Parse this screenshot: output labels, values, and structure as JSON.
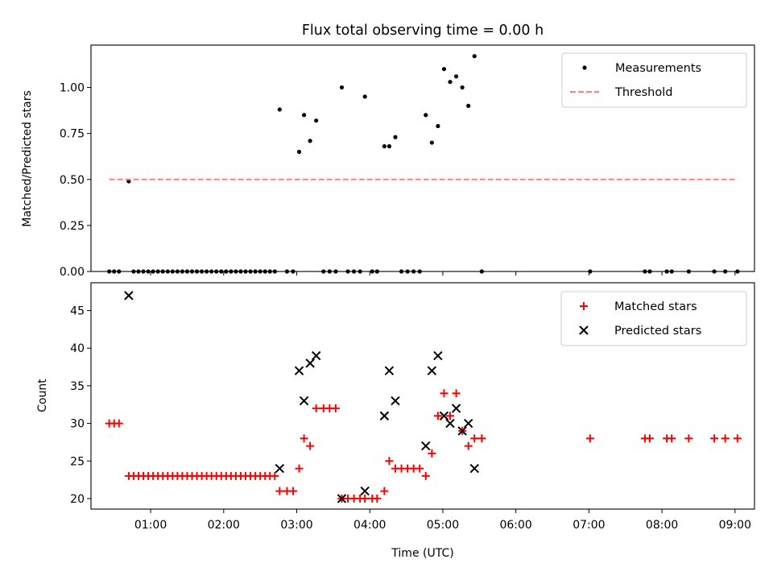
{
  "chart_data": [
    {
      "type": "scatter",
      "title": "Flux total observing time = 0.00 h",
      "ylabel": "Matched/Predicted stars",
      "xlabel": "",
      "xlim": [
        "00:11",
        "09:16"
      ],
      "ylim": [
        0,
        1.23
      ],
      "x_ticks": [
        "01:00",
        "02:00",
        "03:00",
        "04:00",
        "05:00",
        "06:00",
        "07:00",
        "08:00",
        "09:00"
      ],
      "y_ticks": [
        "0.00",
        "0.25",
        "0.50",
        "0.75",
        "1.00"
      ],
      "legend": {
        "placement": "top-right",
        "entries": [
          "Measurements",
          "Threshold"
        ]
      },
      "series": [
        {
          "name": "Measurements",
          "color": "#000000",
          "marker": "dot",
          "points": [
            [
              "00:26",
              0
            ],
            [
              "00:30",
              0
            ],
            [
              "00:34",
              0
            ],
            [
              "00:42",
              0.49
            ],
            [
              "00:46",
              0
            ],
            [
              "00:50",
              0
            ],
            [
              "00:54",
              0
            ],
            [
              "00:58",
              0
            ],
            [
              "01:02",
              0
            ],
            [
              "01:06",
              0
            ],
            [
              "01:10",
              0
            ],
            [
              "01:14",
              0
            ],
            [
              "01:18",
              0
            ],
            [
              "01:22",
              0
            ],
            [
              "01:26",
              0
            ],
            [
              "01:30",
              0
            ],
            [
              "01:34",
              0
            ],
            [
              "01:38",
              0
            ],
            [
              "01:42",
              0
            ],
            [
              "01:46",
              0
            ],
            [
              "01:50",
              0
            ],
            [
              "01:54",
              0
            ],
            [
              "01:58",
              0
            ],
            [
              "02:02",
              0
            ],
            [
              "02:06",
              0
            ],
            [
              "02:10",
              0
            ],
            [
              "02:14",
              0
            ],
            [
              "02:18",
              0
            ],
            [
              "02:22",
              0
            ],
            [
              "02:26",
              0
            ],
            [
              "02:30",
              0
            ],
            [
              "02:34",
              0
            ],
            [
              "02:38",
              0
            ],
            [
              "02:42",
              0
            ],
            [
              "02:46",
              0.88
            ],
            [
              "02:52",
              0
            ],
            [
              "02:57",
              0
            ],
            [
              "03:02",
              0.65
            ],
            [
              "03:06",
              0.85
            ],
            [
              "03:11",
              0.71
            ],
            [
              "03:16",
              0.82
            ],
            [
              "03:22",
              0
            ],
            [
              "03:27",
              0
            ],
            [
              "03:32",
              0
            ],
            [
              "03:37",
              1.0
            ],
            [
              "03:42",
              0
            ],
            [
              "03:47",
              0
            ],
            [
              "03:52",
              0
            ],
            [
              "03:56",
              0.95
            ],
            [
              "04:02",
              0
            ],
            [
              "04:06",
              0
            ],
            [
              "04:12",
              0.68
            ],
            [
              "04:16",
              0.68
            ],
            [
              "04:21",
              0.73
            ],
            [
              "04:26",
              0
            ],
            [
              "04:31",
              0
            ],
            [
              "04:36",
              0
            ],
            [
              "04:41",
              0
            ],
            [
              "04:46",
              0.85
            ],
            [
              "04:51",
              0.7
            ],
            [
              "04:56",
              0.79
            ],
            [
              "05:01",
              1.1
            ],
            [
              "05:06",
              1.03
            ],
            [
              "05:11",
              1.06
            ],
            [
              "05:16",
              1.0
            ],
            [
              "05:21",
              0.9
            ],
            [
              "05:26",
              1.17
            ],
            [
              "05:32",
              0
            ],
            [
              "07:01",
              0
            ],
            [
              "07:46",
              0
            ],
            [
              "07:50",
              0
            ],
            [
              "08:04",
              0
            ],
            [
              "08:08",
              0
            ],
            [
              "08:22",
              0
            ],
            [
              "08:43",
              0
            ],
            [
              "08:52",
              0
            ],
            [
              "09:02",
              0
            ]
          ]
        },
        {
          "name": "Threshold",
          "color": "#ff7f7f",
          "line": "dashed",
          "points": [
            [
              "00:26",
              0.5
            ],
            [
              "09:02",
              0.5
            ]
          ]
        }
      ]
    },
    {
      "type": "scatter",
      "title": "",
      "ylabel": "Count",
      "xlabel": "Time (UTC)",
      "xlim": [
        "00:11",
        "09:16"
      ],
      "ylim": [
        18.6,
        48.7
      ],
      "x_ticks": [
        "01:00",
        "02:00",
        "03:00",
        "04:00",
        "05:00",
        "06:00",
        "07:00",
        "08:00",
        "09:00"
      ],
      "y_ticks": [
        "20",
        "25",
        "30",
        "35",
        "40",
        "45"
      ],
      "legend": {
        "placement": "top-right",
        "entries": [
          "Matched stars",
          "Predicted stars"
        ]
      },
      "series": [
        {
          "name": "Matched stars",
          "color": "#ff0000",
          "marker": "plus",
          "points": [
            [
              "00:26",
              30
            ],
            [
              "00:30",
              30
            ],
            [
              "00:34",
              30
            ],
            [
              "00:42",
              23
            ],
            [
              "00:46",
              23
            ],
            [
              "00:50",
              23
            ],
            [
              "00:54",
              23
            ],
            [
              "00:58",
              23
            ],
            [
              "01:02",
              23
            ],
            [
              "01:06",
              23
            ],
            [
              "01:10",
              23
            ],
            [
              "01:14",
              23
            ],
            [
              "01:18",
              23
            ],
            [
              "01:22",
              23
            ],
            [
              "01:26",
              23
            ],
            [
              "01:30",
              23
            ],
            [
              "01:34",
              23
            ],
            [
              "01:38",
              23
            ],
            [
              "01:42",
              23
            ],
            [
              "01:46",
              23
            ],
            [
              "01:50",
              23
            ],
            [
              "01:54",
              23
            ],
            [
              "01:58",
              23
            ],
            [
              "02:02",
              23
            ],
            [
              "02:06",
              23
            ],
            [
              "02:10",
              23
            ],
            [
              "02:14",
              23
            ],
            [
              "02:18",
              23
            ],
            [
              "02:22",
              23
            ],
            [
              "02:26",
              23
            ],
            [
              "02:30",
              23
            ],
            [
              "02:34",
              23
            ],
            [
              "02:38",
              23
            ],
            [
              "02:42",
              23
            ],
            [
              "02:46",
              21
            ],
            [
              "02:52",
              21
            ],
            [
              "02:57",
              21
            ],
            [
              "03:02",
              24
            ],
            [
              "03:06",
              28
            ],
            [
              "03:11",
              27
            ],
            [
              "03:16",
              32
            ],
            [
              "03:22",
              32
            ],
            [
              "03:27",
              32
            ],
            [
              "03:32",
              32
            ],
            [
              "03:37",
              20
            ],
            [
              "03:42",
              20
            ],
            [
              "03:47",
              20
            ],
            [
              "03:52",
              20
            ],
            [
              "03:56",
              20
            ],
            [
              "04:02",
              20
            ],
            [
              "04:06",
              20
            ],
            [
              "04:12",
              21
            ],
            [
              "04:16",
              25
            ],
            [
              "04:21",
              24
            ],
            [
              "04:26",
              24
            ],
            [
              "04:31",
              24
            ],
            [
              "04:36",
              24
            ],
            [
              "04:41",
              24
            ],
            [
              "04:46",
              23
            ],
            [
              "04:51",
              26
            ],
            [
              "04:56",
              31
            ],
            [
              "05:01",
              34
            ],
            [
              "05:06",
              31
            ],
            [
              "05:11",
              34
            ],
            [
              "05:16",
              29
            ],
            [
              "05:21",
              27
            ],
            [
              "05:26",
              28
            ],
            [
              "05:32",
              28
            ],
            [
              "07:01",
              28
            ],
            [
              "07:46",
              28
            ],
            [
              "07:50",
              28
            ],
            [
              "08:04",
              28
            ],
            [
              "08:08",
              28
            ],
            [
              "08:22",
              28
            ],
            [
              "08:43",
              28
            ],
            [
              "08:52",
              28
            ],
            [
              "09:02",
              28
            ]
          ]
        },
        {
          "name": "Predicted stars",
          "color": "#000000",
          "marker": "x",
          "points": [
            [
              "00:42",
              47
            ],
            [
              "02:46",
              24
            ],
            [
              "03:02",
              37
            ],
            [
              "03:06",
              33
            ],
            [
              "03:11",
              38
            ],
            [
              "03:16",
              39
            ],
            [
              "03:37",
              20
            ],
            [
              "03:56",
              21
            ],
            [
              "04:12",
              31
            ],
            [
              "04:16",
              37
            ],
            [
              "04:21",
              33
            ],
            [
              "04:46",
              27
            ],
            [
              "04:51",
              37
            ],
            [
              "04:56",
              39
            ],
            [
              "05:01",
              31
            ],
            [
              "05:06",
              30
            ],
            [
              "05:11",
              32
            ],
            [
              "05:16",
              29
            ],
            [
              "05:21",
              30
            ],
            [
              "05:26",
              24
            ]
          ]
        }
      ]
    }
  ]
}
